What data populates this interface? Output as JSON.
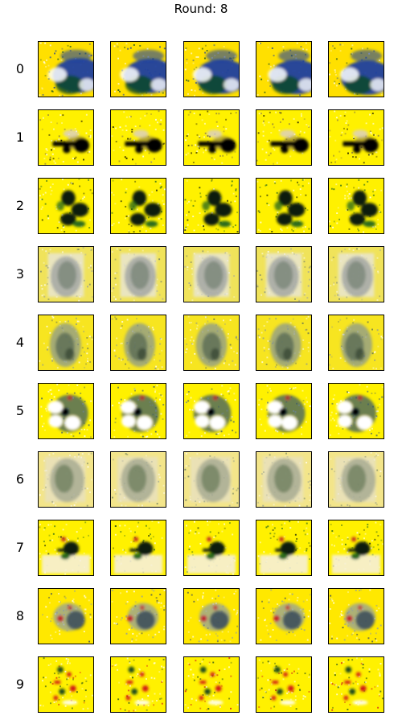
{
  "title": "Round: 8",
  "row_labels": [
    "0",
    "1",
    "2",
    "3",
    "4",
    "5",
    "6",
    "7",
    "8",
    "9"
  ],
  "columns": 5,
  "rows": [
    {
      "label": "0",
      "motif": "blue-blob-with-white-patches",
      "colors": [
        "#ffe000",
        "#1a3fa0",
        "#0e4a22",
        "#ffffff"
      ]
    },
    {
      "label": "1",
      "motif": "small-dark-shape-on-yellow",
      "colors": [
        "#fff100",
        "#000000",
        "#8a7a40",
        "#d4c9e8"
      ]
    },
    {
      "label": "2",
      "motif": "dark-green-leafy-shape",
      "colors": [
        "#fff100",
        "#0a1a0a",
        "#2a6a1a",
        "#ffffff"
      ]
    },
    {
      "label": "3",
      "motif": "faded-grey-column",
      "colors": [
        "#f0e35a",
        "#6b7a6a",
        "#9a9fa0",
        "#e8e6d8"
      ]
    },
    {
      "label": "4",
      "motif": "grey-green-column",
      "colors": [
        "#f7e520",
        "#5a6a55",
        "#8a9890",
        "#2a3a2a"
      ]
    },
    {
      "label": "5",
      "motif": "white-blobs-with-dark-center",
      "colors": [
        "#fff100",
        "#ffffff",
        "#3a5a6a",
        "#c02020"
      ]
    },
    {
      "label": "6",
      "motif": "faded-green-column",
      "colors": [
        "#f3e58a",
        "#6a7a5a",
        "#9aa08a",
        "#e6e0c8"
      ]
    },
    {
      "label": "7",
      "motif": "small-dark-shape-with-light-bottom",
      "colors": [
        "#fff100",
        "#0a1a10",
        "#2a6a1a",
        "#f6f0d8"
      ]
    },
    {
      "label": "8",
      "motif": "muted-blob-with-red-accents",
      "colors": [
        "#ffe800",
        "#3a4a5a",
        "#8a9aa8",
        "#c02020"
      ]
    },
    {
      "label": "9",
      "motif": "sparse-red-green-specks",
      "colors": [
        "#fff100",
        "#d01818",
        "#1a4a1a",
        "#ffffff"
      ]
    }
  ]
}
